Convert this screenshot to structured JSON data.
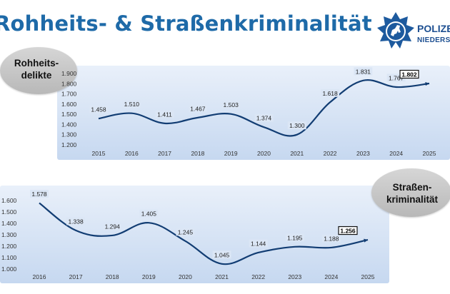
{
  "page": {
    "title": "Rohheits- & Straßenkriminalität",
    "logo": {
      "line1": "POLIZE",
      "line2": "NIEDERSAC",
      "icon": "horse-star-badge-icon"
    }
  },
  "chart_data": [
    {
      "type": "line",
      "label": "Rohheits-\ndelikte",
      "x": [
        "2015",
        "2016",
        "2017",
        "2018",
        "2019",
        "2020",
        "2021",
        "2022",
        "2023",
        "2024",
        "2025"
      ],
      "values": [
        1458,
        1510,
        1411,
        1467,
        1503,
        1374,
        1300,
        1618,
        1831,
        1767,
        1802
      ],
      "value_labels": [
        "1.458",
        "1.510",
        "1.411",
        "1.467",
        "1.503",
        "1.374",
        "1.300",
        "1.618",
        "1.831",
        "1.767",
        "1.802"
      ],
      "y_ticks": [
        1200,
        1300,
        1400,
        1500,
        1600,
        1700,
        1800,
        1900
      ],
      "y_tick_labels": [
        "1.200",
        "1.300",
        "1.400",
        "1.500",
        "1.600",
        "1.700",
        "1.800",
        "1.900"
      ],
      "ylim": [
        1200,
        1900
      ],
      "highlight_last": true,
      "line_color": "#123d73"
    },
    {
      "type": "line",
      "label": "Straßen-\nkriminalität",
      "x": [
        "2016",
        "2017",
        "2018",
        "2019",
        "2020",
        "2021",
        "2022",
        "2023",
        "2024",
        "2025"
      ],
      "values": [
        1578,
        1338,
        1294,
        1405,
        1245,
        1045,
        1144,
        1195,
        1188,
        1256
      ],
      "value_labels": [
        "1.578",
        "1.338",
        "1.294",
        "1.405",
        "1.245",
        "1.045",
        "1.144",
        "1.195",
        "1.188",
        "1.256"
      ],
      "y_ticks": [
        1000,
        1100,
        1200,
        1300,
        1400,
        1500,
        1600
      ],
      "y_tick_labels": [
        "1.000",
        "1.100",
        "1.200",
        "1.300",
        "1.400",
        "1.500",
        "1.600"
      ],
      "ylim": [
        1000,
        1600
      ],
      "highlight_last": true,
      "line_color": "#123d73"
    }
  ]
}
